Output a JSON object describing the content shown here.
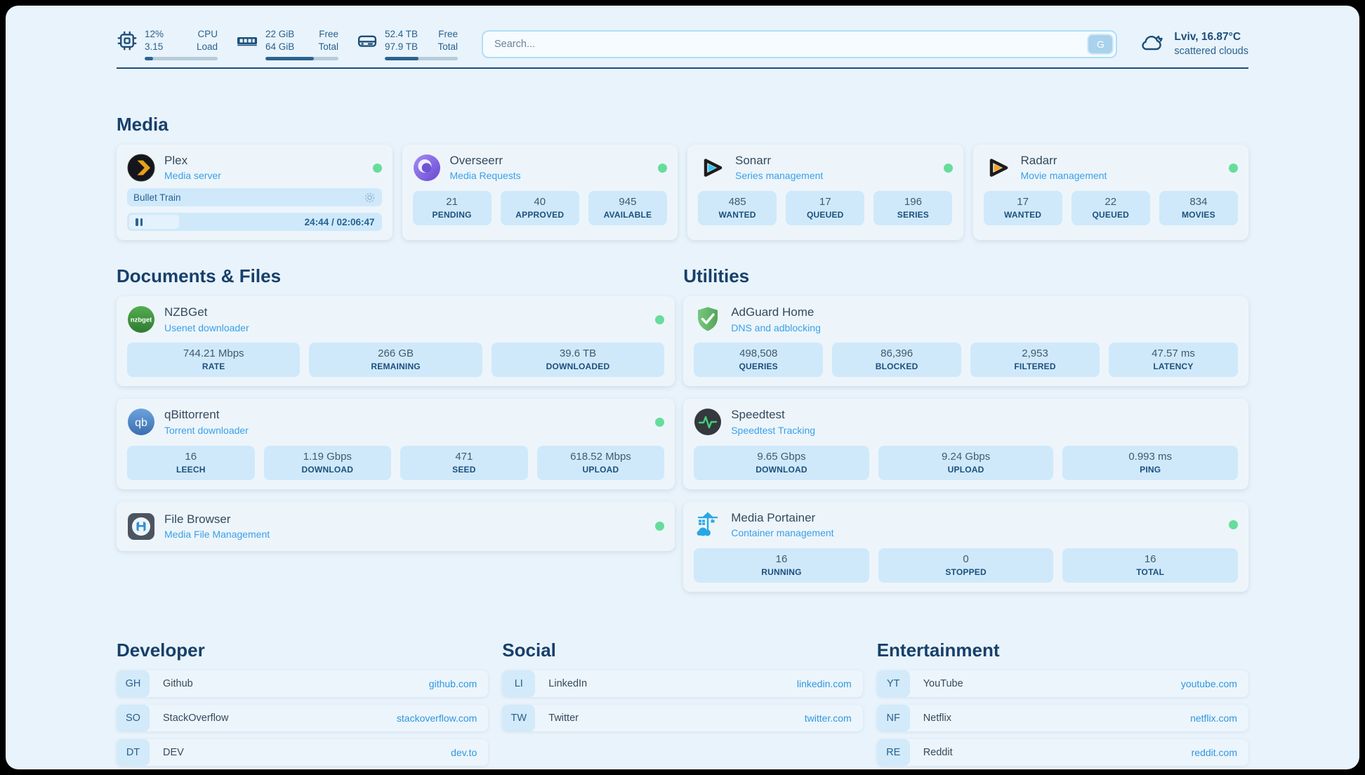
{
  "header": {
    "system": {
      "cpu": {
        "value_top": "12%",
        "value_bottom": "3.15",
        "label_top": "CPU",
        "label_bottom": "Load",
        "progress_pct": 12
      },
      "ram": {
        "value_top": "22 GiB",
        "value_bottom": "64 GiB",
        "label_top": "Free",
        "label_bottom": "Total",
        "progress_pct": 66
      },
      "disk": {
        "value_top": "52.4 TB",
        "value_bottom": "97.9 TB",
        "label_top": "Free",
        "label_bottom": "Total",
        "progress_pct": 46
      }
    },
    "search": {
      "placeholder": "Search...",
      "button_label": "G"
    },
    "weather": {
      "line1": "Lviv, 16.87°C",
      "line2": "scattered clouds"
    }
  },
  "sections": {
    "media": {
      "title": "Media"
    },
    "documents": {
      "title": "Documents & Files"
    },
    "utilities": {
      "title": "Utilities"
    },
    "developer": {
      "title": "Developer"
    },
    "social": {
      "title": "Social"
    },
    "entertainment": {
      "title": "Entertainment"
    }
  },
  "services": {
    "plex": {
      "name": "Plex",
      "subtitle": "Media server",
      "now_playing": "Bullet Train",
      "time": "24:44 / 02:06:47",
      "progress_pct": 19.5
    },
    "overseerr": {
      "name": "Overseerr",
      "subtitle": "Media Requests",
      "stats": [
        {
          "value": "21",
          "label": "PENDING"
        },
        {
          "value": "40",
          "label": "APPROVED"
        },
        {
          "value": "945",
          "label": "AVAILABLE"
        }
      ]
    },
    "sonarr": {
      "name": "Sonarr",
      "subtitle": "Series management",
      "stats": [
        {
          "value": "485",
          "label": "WANTED"
        },
        {
          "value": "17",
          "label": "QUEUED"
        },
        {
          "value": "196",
          "label": "SERIES"
        }
      ]
    },
    "radarr": {
      "name": "Radarr",
      "subtitle": "Movie management",
      "stats": [
        {
          "value": "17",
          "label": "WANTED"
        },
        {
          "value": "22",
          "label": "QUEUED"
        },
        {
          "value": "834",
          "label": "MOVIES"
        }
      ]
    },
    "nzbget": {
      "name": "NZBGet",
      "subtitle": "Usenet downloader",
      "icon_text": "nzbget",
      "stats": [
        {
          "value": "744.21 Mbps",
          "label": "RATE"
        },
        {
          "value": "266 GB",
          "label": "REMAINING"
        },
        {
          "value": "39.6 TB",
          "label": "DOWNLOADED"
        }
      ]
    },
    "qbittorrent": {
      "name": "qBittorrent",
      "subtitle": "Torrent downloader",
      "icon_text": "qb",
      "stats": [
        {
          "value": "16",
          "label": "LEECH"
        },
        {
          "value": "1.19 Gbps",
          "label": "DOWNLOAD"
        },
        {
          "value": "471",
          "label": "SEED"
        },
        {
          "value": "618.52 Mbps",
          "label": "UPLOAD"
        }
      ]
    },
    "filebrowser": {
      "name": "File Browser",
      "subtitle": "Media File Management"
    },
    "adguard": {
      "name": "AdGuard Home",
      "subtitle": "DNS and adblocking",
      "stats": [
        {
          "value": "498,508",
          "label": "QUERIES"
        },
        {
          "value": "86,396",
          "label": "BLOCKED"
        },
        {
          "value": "2,953",
          "label": "FILTERED"
        },
        {
          "value": "47.57 ms",
          "label": "LATENCY"
        }
      ]
    },
    "speedtest": {
      "name": "Speedtest",
      "subtitle": "Speedtest Tracking",
      "stats": [
        {
          "value": "9.65 Gbps",
          "label": "DOWNLOAD"
        },
        {
          "value": "9.24 Gbps",
          "label": "UPLOAD"
        },
        {
          "value": "0.993 ms",
          "label": "PING"
        }
      ]
    },
    "portainer": {
      "name": "Media Portainer",
      "subtitle": "Container management",
      "stats": [
        {
          "value": "16",
          "label": "RUNNING"
        },
        {
          "value": "0",
          "label": "STOPPED"
        },
        {
          "value": "16",
          "label": "TOTAL"
        }
      ]
    }
  },
  "bookmarks": {
    "developer": [
      {
        "abbr": "GH",
        "name": "Github",
        "url": "github.com"
      },
      {
        "abbr": "SO",
        "name": "StackOverflow",
        "url": "stackoverflow.com"
      },
      {
        "abbr": "DT",
        "name": "DEV",
        "url": "dev.to"
      }
    ],
    "social": [
      {
        "abbr": "LI",
        "name": "LinkedIn",
        "url": "linkedin.com"
      },
      {
        "abbr": "TW",
        "name": "Twitter",
        "url": "twitter.com"
      }
    ],
    "entertainment": [
      {
        "abbr": "YT",
        "name": "YouTube",
        "url": "youtube.com"
      },
      {
        "abbr": "NF",
        "name": "Netflix",
        "url": "netflix.com"
      },
      {
        "abbr": "RE",
        "name": "Reddit",
        "url": "reddit.com"
      }
    ]
  },
  "colors": {
    "page_bg": "#e9f3fb",
    "card_bg": "#edf5fb",
    "tile_bg": "#cfe9fb",
    "navy": "#1c4e79",
    "accent_blue": "#3aa0e8",
    "link_blue": "#2f97e0",
    "status_green": "#66dd9a",
    "progress_fill": "#2a6492"
  }
}
